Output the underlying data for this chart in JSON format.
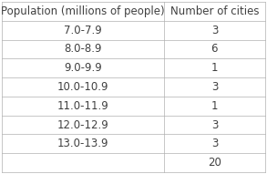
{
  "col1_header": "Population (millions of people)",
  "col2_header": "Number of cities",
  "rows": [
    [
      "7.0-7.9",
      "3"
    ],
    [
      "8.0-8.9",
      "6"
    ],
    [
      "9.0-9.9",
      "1"
    ],
    [
      "10.0-10.9",
      "3"
    ],
    [
      "11.0-11.9",
      "1"
    ],
    [
      "12.0-12.9",
      "3"
    ],
    [
      "13.0-13.9",
      "3"
    ],
    [
      "",
      "20"
    ]
  ],
  "background_color": "#ffffff",
  "text_color": "#404040",
  "line_color": "#b0b0b0",
  "font_size": 8.5,
  "col_split": 0.615
}
